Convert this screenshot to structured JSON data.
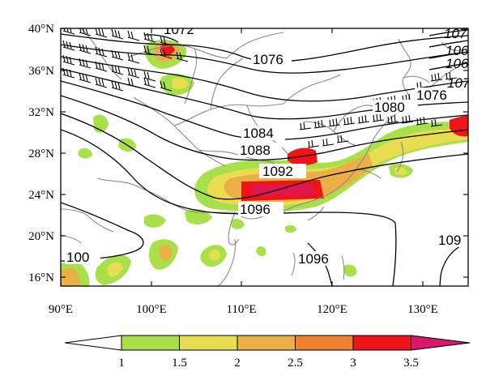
{
  "map": {
    "lat_labels": [
      "40°N",
      "36°N",
      "32°N",
      "28°N",
      "24°N",
      "20°N",
      "16°N"
    ],
    "lon_labels": [
      "90°E",
      "100°E",
      "110°E",
      "120°E",
      "130°E"
    ],
    "contour_labels": [
      "1072",
      "1076",
      "1076",
      "1080",
      "1084",
      "1088",
      "1092",
      "1096",
      "1096",
      "100",
      "109",
      "107",
      "106",
      "106",
      "107"
    ]
  },
  "colorbar": {
    "levels": [
      "1",
      "1.5",
      "2",
      "2.5",
      "3",
      "3.5"
    ],
    "colors": [
      "#ffffff",
      "#a8e04a",
      "#e8dc50",
      "#eab046",
      "#ee8030",
      "#ee1418",
      "#d8186a"
    ]
  }
}
